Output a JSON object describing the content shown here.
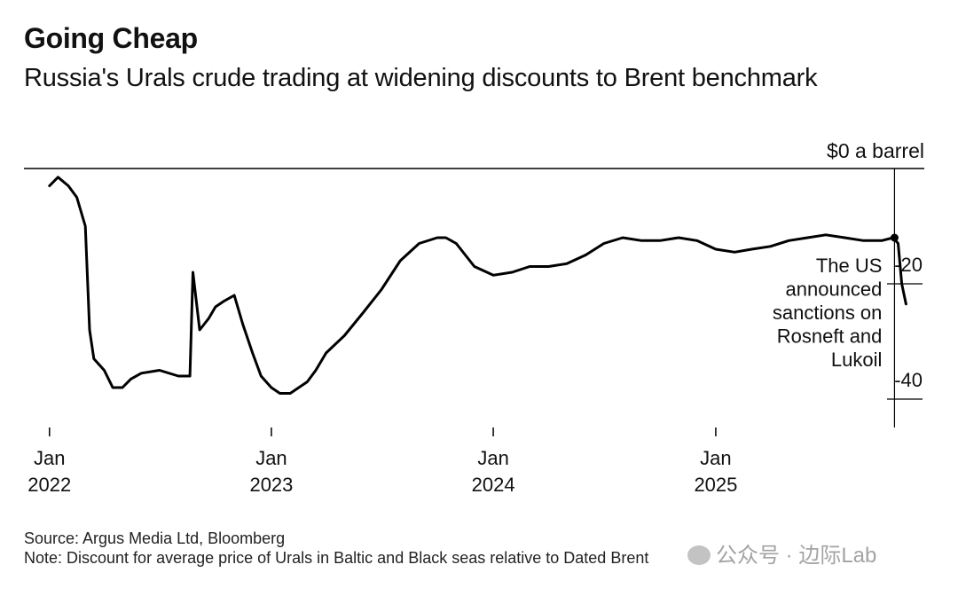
{
  "title": "Going Cheap",
  "subtitle": "Russia's Urals crude trading at widening discounts to Brent benchmark",
  "source": "Source: Argus Media Ltd, Bloomberg",
  "note": "Note: Discount for average price of Urals in Baltic and Black seas relative to Dated Brent",
  "watermark": "公众号 · 边际Lab",
  "colors": {
    "line": "#000000",
    "text": "#111111",
    "axis": "#000000"
  },
  "chart_data": {
    "type": "line",
    "title": "Going Cheap",
    "subtitle": "Russia's Urals crude trading at widening discounts to Brent benchmark",
    "y_unit_label": "$0 a barrel",
    "ylim": [
      -40,
      0
    ],
    "yticks": [
      -20,
      -40
    ],
    "x_ticks": [
      {
        "date": "2022-01-01",
        "label": [
          "Jan",
          "2022"
        ]
      },
      {
        "date": "2023-01-01",
        "label": [
          "Jan",
          "2023"
        ]
      },
      {
        "date": "2024-01-01",
        "label": [
          "Jan",
          "2024"
        ]
      },
      {
        "date": "2025-01-01",
        "label": [
          "Jan",
          "2025"
        ]
      }
    ],
    "xlim": [
      "2021-11-20",
      "2025-12-10"
    ],
    "grid": false,
    "annotation": {
      "date": "2025-10-22",
      "text": [
        "The US",
        "announced",
        "sanctions on",
        "Rosneft and",
        "Lukoil"
      ]
    },
    "series": [
      {
        "points": [
          [
            "2022-01-01",
            -3
          ],
          [
            "2022-01-15",
            -1.5
          ],
          [
            "2022-02-01",
            -3
          ],
          [
            "2022-02-15",
            -5
          ],
          [
            "2022-03-01",
            -10
          ],
          [
            "2022-03-08",
            -28
          ],
          [
            "2022-03-15",
            -33
          ],
          [
            "2022-04-01",
            -35
          ],
          [
            "2022-04-15",
            -38
          ],
          [
            "2022-05-01",
            -38
          ],
          [
            "2022-05-15",
            -36.5
          ],
          [
            "2022-06-01",
            -35.5
          ],
          [
            "2022-07-01",
            -35
          ],
          [
            "2022-08-01",
            -36
          ],
          [
            "2022-08-20",
            -36
          ],
          [
            "2022-08-25",
            -18
          ],
          [
            "2022-09-05",
            -28
          ],
          [
            "2022-09-20",
            -26
          ],
          [
            "2022-10-01",
            -24
          ],
          [
            "2022-10-15",
            -23
          ],
          [
            "2022-11-01",
            -22
          ],
          [
            "2022-11-15",
            -27
          ],
          [
            "2022-12-01",
            -32
          ],
          [
            "2022-12-15",
            -36
          ],
          [
            "2023-01-01",
            -38
          ],
          [
            "2023-01-15",
            -39
          ],
          [
            "2023-02-01",
            -39
          ],
          [
            "2023-02-15",
            -38
          ],
          [
            "2023-03-01",
            -37
          ],
          [
            "2023-03-15",
            -35
          ],
          [
            "2023-04-01",
            -32
          ],
          [
            "2023-05-01",
            -29
          ],
          [
            "2023-06-01",
            -25
          ],
          [
            "2023-07-01",
            -21
          ],
          [
            "2023-08-01",
            -16
          ],
          [
            "2023-09-01",
            -13
          ],
          [
            "2023-10-01",
            -12
          ],
          [
            "2023-10-15",
            -12
          ],
          [
            "2023-11-01",
            -13
          ],
          [
            "2023-12-01",
            -17
          ],
          [
            "2024-01-01",
            -18.5
          ],
          [
            "2024-02-01",
            -18
          ],
          [
            "2024-03-01",
            -17
          ],
          [
            "2024-04-01",
            -17
          ],
          [
            "2024-05-01",
            -16.5
          ],
          [
            "2024-06-01",
            -15
          ],
          [
            "2024-07-01",
            -13
          ],
          [
            "2024-08-01",
            -12
          ],
          [
            "2024-09-01",
            -12.5
          ],
          [
            "2024-10-01",
            -12.5
          ],
          [
            "2024-11-01",
            -12
          ],
          [
            "2024-12-01",
            -12.5
          ],
          [
            "2025-01-01",
            -14
          ],
          [
            "2025-02-01",
            -14.5
          ],
          [
            "2025-03-01",
            -14
          ],
          [
            "2025-04-01",
            -13.5
          ],
          [
            "2025-05-01",
            -12.5
          ],
          [
            "2025-06-01",
            -12
          ],
          [
            "2025-07-01",
            -11.5
          ],
          [
            "2025-08-01",
            -12
          ],
          [
            "2025-09-01",
            -12.5
          ],
          [
            "2025-10-01",
            -12.5
          ],
          [
            "2025-10-20",
            -12
          ],
          [
            "2025-10-28",
            -13
          ],
          [
            "2025-11-03",
            -20
          ],
          [
            "2025-11-10",
            -23.5
          ]
        ]
      }
    ]
  }
}
